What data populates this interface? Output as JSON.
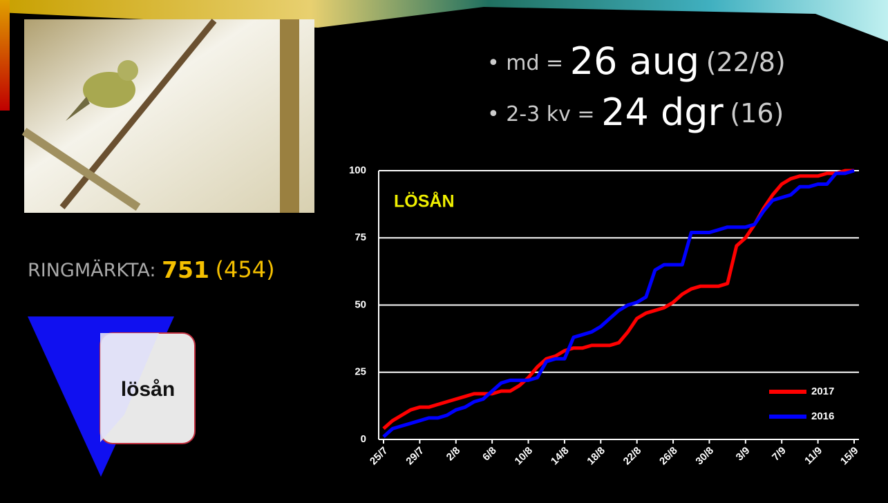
{
  "slide": {
    "bullets": [
      {
        "label": "md =",
        "value": "26 aug",
        "previous": "(22/8)"
      },
      {
        "label": "2-3 kv =",
        "value": "24 dgr",
        "previous": "(16)"
      }
    ],
    "ringed_label": "RINGMÄRKTA:",
    "ringed_value": "751",
    "ringed_previous": "(454)",
    "logo_text": "lösån"
  },
  "chart_data": {
    "type": "line",
    "title": "LÖSÅN",
    "categories": [
      "25/7",
      null,
      null,
      null,
      "29/7",
      null,
      null,
      null,
      "2/8",
      null,
      null,
      null,
      "6/8",
      null,
      null,
      null,
      "10/8",
      null,
      null,
      null,
      "14/8",
      null,
      null,
      null,
      "18/8",
      null,
      null,
      null,
      "22/8",
      null,
      null,
      null,
      "26/8",
      null,
      null,
      null,
      "30/8",
      null,
      null,
      null,
      "3/9",
      null,
      null,
      null,
      "7/9",
      null,
      null,
      null,
      "11/9",
      null,
      null,
      null,
      "15/9"
    ],
    "series": [
      {
        "name": "2017",
        "color": "#ff0000",
        "values": [
          4,
          7,
          9,
          11,
          12,
          12,
          13,
          14,
          15,
          16,
          17,
          17,
          17,
          18,
          18,
          20,
          23,
          27,
          30,
          31,
          33,
          34,
          34,
          35,
          35,
          35,
          36,
          40,
          45,
          47,
          48,
          49,
          51,
          54,
          56,
          57,
          57,
          57,
          58,
          72,
          75,
          80,
          86,
          91,
          95,
          97,
          98,
          98,
          98,
          99,
          99,
          100,
          100
        ]
      },
      {
        "name": "2016",
        "color": "#0000ff",
        "values": [
          1,
          4,
          5,
          6,
          7,
          8,
          8,
          9,
          11,
          12,
          14,
          15,
          18,
          21,
          22,
          22,
          22,
          23,
          29,
          30,
          30,
          38,
          39,
          40,
          42,
          45,
          48,
          50,
          51,
          53,
          63,
          65,
          65,
          65,
          77,
          77,
          77,
          78,
          79,
          79,
          79,
          80,
          85,
          89,
          90,
          91,
          94,
          94,
          95,
          95,
          99,
          99,
          100
        ]
      }
    ],
    "ylim": [
      0,
      100
    ],
    "yticks": [
      0,
      25,
      50,
      75,
      100
    ],
    "grid": true,
    "legend": "lower-right"
  }
}
